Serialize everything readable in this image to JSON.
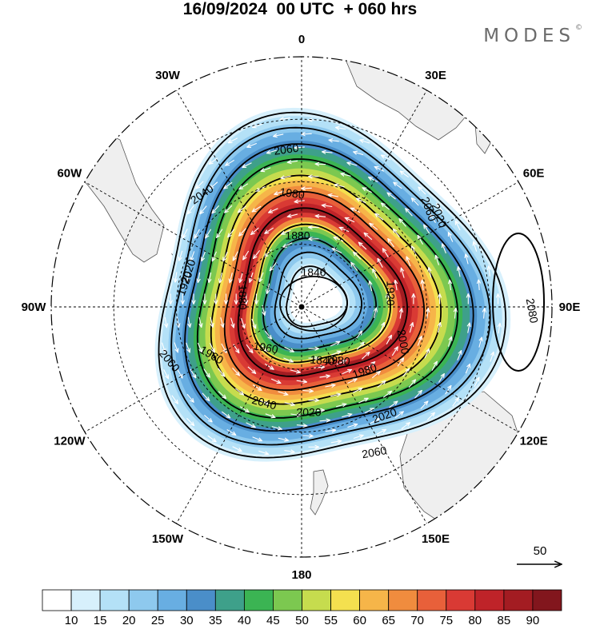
{
  "header": {
    "title": "16/09/2024  00 UTC  + 060 hrs",
    "brand": "MODES",
    "brand_mark": "©"
  },
  "map": {
    "projection": "south-polar-stereographic",
    "longitude_labels": [
      "0",
      "30E",
      "60E",
      "90E",
      "120E",
      "150E",
      "180",
      "150W",
      "120W",
      "90W",
      "60W",
      "30W"
    ],
    "contour_labels": [
      "1840",
      "1880",
      "1920",
      "1960",
      "1980",
      "2000",
      "2020",
      "2040",
      "2060",
      "2080"
    ],
    "vector_reference": "50"
  },
  "colorbar": {
    "labels": [
      "10",
      "15",
      "20",
      "25",
      "30",
      "35",
      "40",
      "45",
      "50",
      "55",
      "60",
      "65",
      "70",
      "75",
      "80",
      "85",
      "90"
    ],
    "colors": [
      "#ffffff",
      "#d7f0fc",
      "#b4e1f7",
      "#8ec9ee",
      "#68aee2",
      "#4a8ec9",
      "#3ea08a",
      "#3bb453",
      "#7cc850",
      "#c6dc4e",
      "#f4e04f",
      "#f6b549",
      "#f08c3e",
      "#e8603a",
      "#d93a34",
      "#bf2329",
      "#a31c22",
      "#82161d"
    ]
  }
}
